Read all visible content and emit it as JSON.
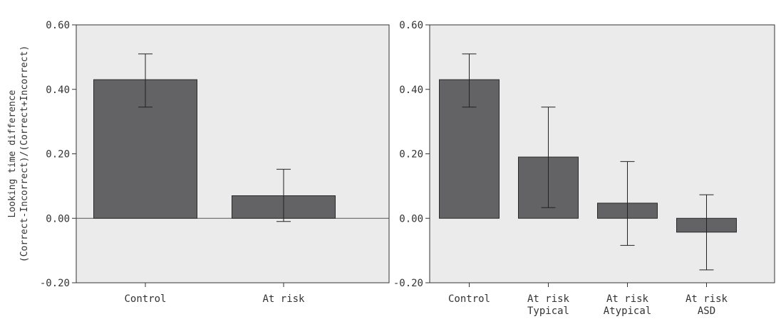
{
  "chart_data": [
    {
      "type": "bar",
      "title": "",
      "xlabel": "",
      "ylabel_lines": [
        "Looking time difference",
        "(Correct-Incorrect)/(Correct+Incorrect)"
      ],
      "ylim": [
        -0.2,
        0.6
      ],
      "yticks": [
        "-0.20",
        "0.00",
        "0.20",
        "0.40",
        "0.60"
      ],
      "tick_values": [
        -0.2,
        0.0,
        0.2,
        0.4,
        0.6
      ],
      "categories": [
        [
          "Control"
        ],
        [
          "At risk"
        ]
      ],
      "values": [
        0.43,
        0.07
      ],
      "error_low": [
        0.345,
        -0.01
      ],
      "error_high": [
        0.51,
        0.152
      ],
      "zero_line": true,
      "grid": false,
      "colors": {
        "bar": "#636366",
        "background": "#ebebeb"
      }
    },
    {
      "type": "bar",
      "title": "",
      "xlabel": "",
      "ylabel_lines": [],
      "ylim": [
        -0.2,
        0.6
      ],
      "yticks": [
        "-0.20",
        "0.00",
        "0.20",
        "0.40",
        "0.60"
      ],
      "tick_values": [
        -0.2,
        0.0,
        0.2,
        0.4,
        0.6
      ],
      "categories": [
        [
          "Control"
        ],
        [
          "At risk",
          "Typical"
        ],
        [
          "At risk",
          "Atypical"
        ],
        [
          "At risk",
          "ASD"
        ]
      ],
      "values": [
        0.43,
        0.19,
        0.047,
        -0.043
      ],
      "error_low": [
        0.345,
        0.033,
        -0.084,
        -0.16
      ],
      "error_high": [
        0.51,
        0.345,
        0.176,
        0.073
      ],
      "zero_line": false,
      "grid": false,
      "colors": {
        "bar": "#636366",
        "background": "#ebebeb"
      }
    }
  ]
}
